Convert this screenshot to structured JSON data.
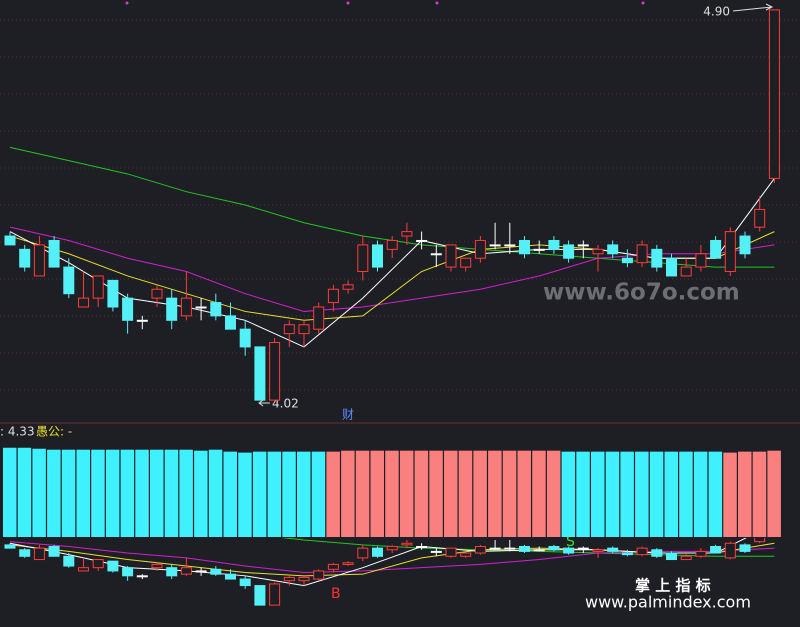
{
  "chart_data": [
    {
      "type": "candlestick",
      "open": [
        4.39,
        4.36,
        4.3,
        4.38,
        4.32,
        4.23,
        4.25,
        4.29,
        4.25,
        4.2,
        4.25,
        4.25,
        4.21,
        4.23,
        4.24,
        4.21,
        4.18,
        4.14,
        4.02,
        4.17,
        4.17,
        4.18,
        4.24,
        4.27,
        4.31,
        4.37,
        4.36,
        4.39,
        4.38,
        4.35,
        4.32,
        4.32,
        4.34,
        4.37,
        4.37,
        4.38,
        4.36,
        4.38,
        4.37,
        4.37,
        4.35,
        4.37,
        4.34,
        4.33,
        4.36,
        4.34,
        4.3,
        4.32,
        4.38,
        4.31,
        4.39,
        4.41,
        4.52
      ],
      "high": [
        4.4,
        4.37,
        4.39,
        4.39,
        4.34,
        4.31,
        4.3,
        4.29,
        4.26,
        4.21,
        4.28,
        4.27,
        4.31,
        4.25,
        4.26,
        4.24,
        4.2,
        4.14,
        4.16,
        4.2,
        4.2,
        4.24,
        4.28,
        4.29,
        4.39,
        4.38,
        4.39,
        4.42,
        4.4,
        4.37,
        4.37,
        4.34,
        4.39,
        4.42,
        4.42,
        4.39,
        4.38,
        4.39,
        4.38,
        4.38,
        4.37,
        4.38,
        4.36,
        4.38,
        4.37,
        4.35,
        4.34,
        4.37,
        4.39,
        4.41,
        4.4,
        4.48,
        4.9
      ],
      "low": [
        4.37,
        4.31,
        4.3,
        4.32,
        4.25,
        4.23,
        4.23,
        4.22,
        4.17,
        4.18,
        4.23,
        4.18,
        4.2,
        4.2,
        4.2,
        4.18,
        4.12,
        4.02,
        4.02,
        4.14,
        4.14,
        4.17,
        4.22,
        4.26,
        4.29,
        4.31,
        4.34,
        4.37,
        4.36,
        4.32,
        4.31,
        4.31,
        4.33,
        4.36,
        4.35,
        4.34,
        4.35,
        4.35,
        4.33,
        4.34,
        4.31,
        4.34,
        4.32,
        4.32,
        4.31,
        4.3,
        4.3,
        4.31,
        4.34,
        4.3,
        4.34,
        4.4,
        4.51
      ],
      "close": [
        4.37,
        4.32,
        4.37,
        4.32,
        4.26,
        4.25,
        4.3,
        4.23,
        4.2,
        4.2,
        4.27,
        4.2,
        4.25,
        4.23,
        4.21,
        4.18,
        4.14,
        4.02,
        4.15,
        4.19,
        4.19,
        4.23,
        4.27,
        4.28,
        4.37,
        4.32,
        4.38,
        4.4,
        4.38,
        4.35,
        4.37,
        4.34,
        4.38,
        4.37,
        4.37,
        4.35,
        4.36,
        4.36,
        4.34,
        4.37,
        4.36,
        4.35,
        4.33,
        4.37,
        4.32,
        4.3,
        4.32,
        4.35,
        4.34,
        4.4,
        4.35,
        4.45,
        4.9
      ],
      "up_color": "#ff3b3b",
      "down_color": "#54f0f8",
      "doji_color": "#ffffff",
      "ylim": [
        4.0,
        4.92
      ],
      "lines": [
        {
          "color": "#22c522",
          "x": [
            0,
            4,
            8,
            12,
            16,
            20,
            24,
            28,
            32,
            36,
            40,
            44,
            48,
            52
          ],
          "values": [
            4.59,
            4.56,
            4.53,
            4.49,
            4.46,
            4.42,
            4.39,
            4.37,
            4.36,
            4.35,
            4.34,
            4.33,
            4.32,
            4.32
          ]
        },
        {
          "color": "#d020d0",
          "x": [
            0,
            4,
            8,
            12,
            16,
            20,
            24,
            28,
            32,
            36,
            40,
            44,
            48,
            52
          ],
          "values": [
            4.41,
            4.38,
            4.34,
            4.31,
            4.26,
            4.22,
            4.23,
            4.25,
            4.27,
            4.3,
            4.34,
            4.35,
            4.35,
            4.37
          ]
        },
        {
          "color": "#e8e030",
          "x": [
            0,
            4,
            8,
            12,
            16,
            20,
            24,
            28,
            32,
            36,
            40,
            44,
            48,
            52
          ],
          "values": [
            4.39,
            4.35,
            4.3,
            4.26,
            4.22,
            4.2,
            4.21,
            4.31,
            4.36,
            4.37,
            4.36,
            4.34,
            4.34,
            4.4
          ]
        },
        {
          "color": "#ffffff",
          "x": [
            0,
            4,
            8,
            12,
            16,
            20,
            24,
            28,
            32,
            36,
            40,
            44,
            48,
            52
          ],
          "values": [
            4.4,
            4.33,
            4.25,
            4.23,
            4.2,
            4.14,
            4.25,
            4.38,
            4.35,
            4.36,
            4.36,
            4.34,
            4.34,
            4.52
          ]
        }
      ],
      "high_label": "4.90",
      "low_label": "4.02",
      "marker_text": "财"
    },
    {
      "type": "indicator",
      "readout": ": 4.33",
      "name_label": "愚公: -",
      "values": [
        92,
        92,
        91,
        90,
        90,
        90,
        90,
        90,
        90,
        90,
        90,
        90,
        90,
        89,
        90,
        88,
        87,
        88,
        88,
        88,
        88,
        88,
        88,
        89,
        89,
        89,
        89,
        89,
        89,
        89,
        89,
        89,
        89,
        89,
        89,
        89,
        89,
        89,
        88,
        88,
        88,
        88,
        88,
        88,
        88,
        88,
        88,
        88,
        88,
        87,
        88,
        88,
        89
      ],
      "colors": [
        "#3ff0ff",
        "#3ff0ff",
        "#3ff0ff",
        "#3ff0ff",
        "#3ff0ff",
        "#3ff0ff",
        "#3ff0ff",
        "#3ff0ff",
        "#3ff0ff",
        "#3ff0ff",
        "#3ff0ff",
        "#3ff0ff",
        "#3ff0ff",
        "#3ff0ff",
        "#3ff0ff",
        "#3ff0ff",
        "#3ff0ff",
        "#3ff0ff",
        "#3ff0ff",
        "#3ff0ff",
        "#3ff0ff",
        "#3ff0ff",
        "#fa8080",
        "#fa8080",
        "#fa8080",
        "#fa8080",
        "#fa8080",
        "#fa8080",
        "#fa8080",
        "#fa8080",
        "#fa8080",
        "#fa8080",
        "#fa8080",
        "#fa8080",
        "#fa8080",
        "#fa8080",
        "#fa8080",
        "#fa8080",
        "#3ff0ff",
        "#3ff0ff",
        "#3ff0ff",
        "#3ff0ff",
        "#3ff0ff",
        "#3ff0ff",
        "#3ff0ff",
        "#3ff0ff",
        "#3ff0ff",
        "#3ff0ff",
        "#3ff0ff",
        "#fa8080",
        "#fa8080",
        "#fa8080",
        "#fa8080"
      ],
      "ylim": [
        0,
        100
      ],
      "price_ylim": [
        3.99,
        4.42
      ],
      "buy_signal": "B",
      "sell_signal": "S"
    },
    {
      "type": "watermark",
      "site": "www.6o7o.com",
      "brand": "掌 上 指 标",
      "brand_url": "www.palmindex.com"
    }
  ]
}
